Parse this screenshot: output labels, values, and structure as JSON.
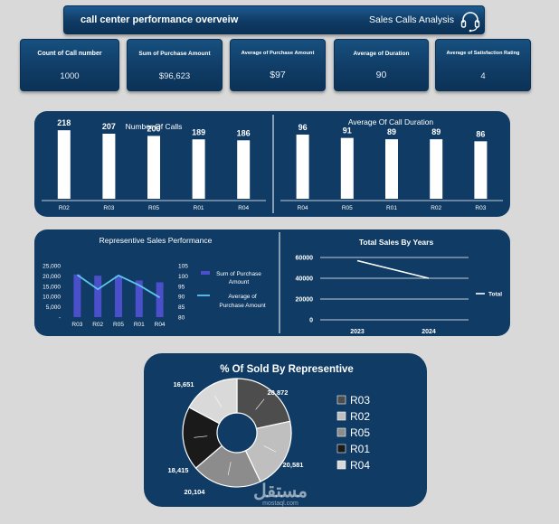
{
  "header": {
    "title": "call center performance overveiw",
    "subtitle": "Sales Calls Analysis",
    "icon": "headset-icon"
  },
  "kpis": [
    {
      "label": "Count of Call number",
      "value": "1000"
    },
    {
      "label": "Sum of Purchase Amount",
      "value": "$96,623"
    },
    {
      "label": "Average of Purchase Amount",
      "value": "$97"
    },
    {
      "label": "Average of Duration",
      "value": "90"
    },
    {
      "label": "Average of Satisfaction Rating",
      "value": "4"
    }
  ],
  "chart_data": [
    {
      "type": "bar",
      "title": "Number Of Calls",
      "categories": [
        "R02",
        "R03",
        "R05",
        "R01",
        "R04"
      ],
      "values": [
        218,
        207,
        200,
        189,
        186
      ],
      "data_labels": [
        "218",
        "207",
        "200",
        "189",
        "186"
      ],
      "ylim": [
        0,
        230
      ]
    },
    {
      "type": "bar",
      "title": "Average Of Call Duration",
      "categories": [
        "R04",
        "R05",
        "R01",
        "R02",
        "R03"
      ],
      "values": [
        96,
        91,
        89,
        89,
        86
      ],
      "data_labels": [
        "96",
        "91",
        "89",
        "89",
        "86"
      ],
      "ylim": [
        0,
        100
      ]
    },
    {
      "type": "bar",
      "title": "Representive Sales Performance",
      "categories": [
        "R03",
        "R02",
        "R05",
        "R01",
        "R04"
      ],
      "series": [
        {
          "name": "Sum of Purchase Amount",
          "type": "bar",
          "axis": "left",
          "values": [
            20700,
            20100,
            20000,
            17800,
            16900
          ]
        },
        {
          "name": "Average of Purchase Amount",
          "type": "line",
          "axis": "right",
          "values": [
            100.5,
            93.5,
            100.2,
            95.5,
            89.5
          ]
        }
      ],
      "y_left": {
        "ylim": [
          0,
          25000
        ],
        "ticks": [
          "-",
          "5,000",
          "10,000",
          "15,000",
          "20,000",
          "25,000"
        ]
      },
      "y_right": {
        "ylim": [
          80,
          105
        ],
        "ticks": [
          "80",
          "85",
          "90",
          "95",
          "100",
          "105"
        ]
      },
      "legend": "right"
    },
    {
      "type": "line",
      "title": "Total Sales By Years",
      "x": [
        "2023",
        "2024"
      ],
      "series": [
        {
          "name": "Total",
          "values": [
            57000,
            40000
          ]
        }
      ],
      "ylim": [
        0,
        60000
      ],
      "ticks": [
        "0",
        "20000",
        "40000",
        "60000"
      ],
      "legend": "right"
    },
    {
      "type": "pie",
      "title": "% Of Sold By Representive",
      "donut": true,
      "categories": [
        "R03",
        "R02",
        "R05",
        "R01",
        "R04"
      ],
      "values": [
        20872,
        20581,
        20104,
        18415,
        16651
      ],
      "data_labels": [
        "20,872",
        "20,581",
        "20,104",
        "18,415",
        "16,651"
      ],
      "colors": [
        "#4d4d4d",
        "#bfbfbf",
        "#8c8c8c",
        "#1a1a1a",
        "#d9d9d9"
      ],
      "legend": "right"
    }
  ],
  "watermark": {
    "text": "مستقل",
    "sub": "mostaql.com"
  }
}
